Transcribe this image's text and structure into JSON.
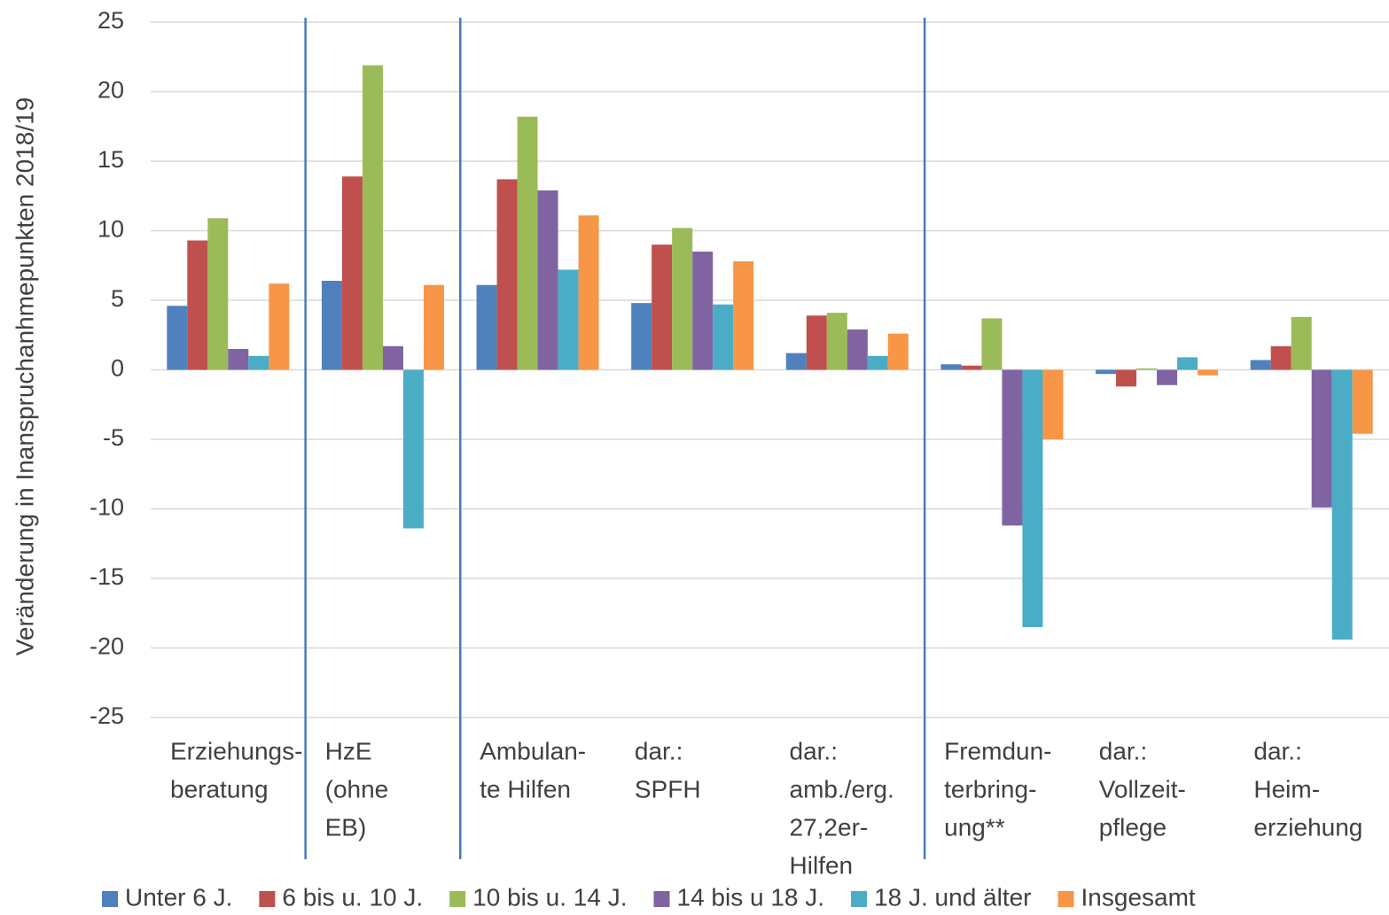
{
  "chart_data": {
    "type": "bar",
    "y_label": "Veränderung in Inanspruchanhmepunkten  2018/19",
    "categories": [
      [
        "Erziehungs-",
        "beratung"
      ],
      [
        "HzE",
        "(ohne",
        "EB)"
      ],
      [
        "Ambulan-",
        "te Hilfen"
      ],
      [
        "dar.:",
        "SPFH"
      ],
      [
        "dar.:",
        "amb./erg.",
        "27,2er-",
        "Hilfen"
      ],
      [
        "Fremdun-",
        "terbring-",
        "ung**"
      ],
      [
        "dar.:",
        "Vollzeit-",
        "pflege"
      ],
      [
        "dar.:",
        "Heim-",
        "erziehung"
      ]
    ],
    "series": [
      {
        "name": "Unter 6 J.",
        "color": "#4f81bd",
        "values": [
          4.6,
          6.4,
          6.1,
          4.8,
          1.2,
          0.4,
          -0.3,
          0.7
        ]
      },
      {
        "name": "6 bis u. 10 J.",
        "color": "#c0504d",
        "values": [
          9.3,
          13.9,
          13.7,
          9.0,
          3.9,
          0.3,
          -1.2,
          1.7
        ]
      },
      {
        "name": "10 bis u. 14 J.",
        "color": "#9bbb59",
        "values": [
          10.9,
          21.9,
          18.2,
          10.2,
          4.1,
          3.7,
          0.1,
          3.8
        ]
      },
      {
        "name": "14 bis u 18 J.",
        "color": "#8064a2",
        "values": [
          1.5,
          1.7,
          12.9,
          8.5,
          2.9,
          -11.2,
          -1.1,
          -9.9
        ]
      },
      {
        "name": "18 J. und älter",
        "color": "#4bacc6",
        "values": [
          1.0,
          -11.4,
          7.2,
          4.7,
          1.0,
          -18.5,
          0.9,
          -19.4
        ]
      },
      {
        "name": "Insgesamt",
        "color": "#f79646",
        "values": [
          6.2,
          6.1,
          11.1,
          7.8,
          2.6,
          -5.0,
          -0.4,
          -4.6
        ]
      }
    ],
    "ylim": [
      -25,
      25
    ],
    "yticks": [
      -25,
      -20,
      -15,
      -10,
      -5,
      0,
      5,
      10,
      15,
      20,
      25
    ],
    "grid": true,
    "legend": "bottom"
  }
}
